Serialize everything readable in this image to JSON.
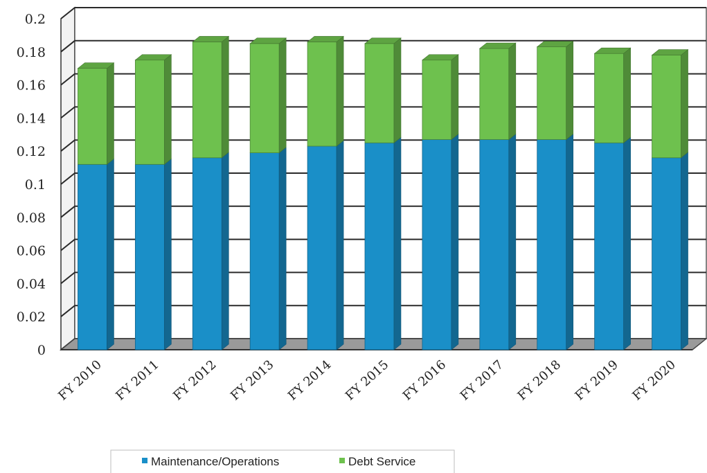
{
  "chart_data": {
    "type": "bar",
    "stacked": true,
    "three_d": true,
    "categories": [
      "FY 2010",
      "FY 2011",
      "FY 2012",
      "FY 2013",
      "FY 2014",
      "FY 2015",
      "FY 2016",
      "FY 2017",
      "FY 2018",
      "FY 2019",
      "FY 2020"
    ],
    "series": [
      {
        "name": "Maintenance/Operations",
        "color": "#1a8fc8",
        "values": [
          0.112,
          0.112,
          0.116,
          0.119,
          0.123,
          0.125,
          0.127,
          0.127,
          0.127,
          0.125,
          0.116
        ]
      },
      {
        "name": "Debt Service",
        "color": "#6ec14e",
        "values": [
          0.058,
          0.063,
          0.07,
          0.066,
          0.063,
          0.06,
          0.048,
          0.055,
          0.056,
          0.054,
          0.062
        ]
      }
    ],
    "ylim": [
      0,
      0.2
    ],
    "yticks": [
      "0",
      "0.02",
      "0.04",
      "0.06",
      "0.08",
      "0.1",
      "0.12",
      "0.14",
      "0.16",
      "0.18",
      "0.2"
    ],
    "grid": true,
    "legend_position": "bottom"
  }
}
